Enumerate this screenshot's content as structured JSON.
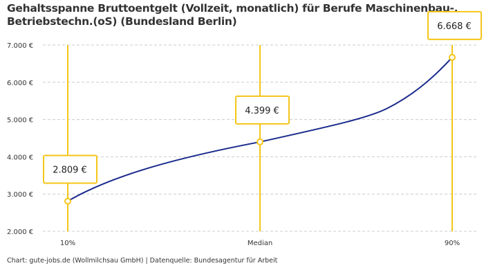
{
  "chart_data": {
    "type": "line",
    "title": "Gehaltsspanne Bruttoentgelt (Vollzeit, monatlich) für Berufe Maschinenbau-, Betriebstechn.(oS) (Bundesland Berlin)",
    "categories": [
      "10%",
      "Median",
      "90%"
    ],
    "values": [
      2809,
      4399,
      6668
    ],
    "data_labels": [
      "2.809 €",
      "4.399 €",
      "6.668 €"
    ],
    "ylim": [
      2000,
      7000
    ],
    "yticks": [
      2000,
      3000,
      4000,
      5000,
      6000,
      7000
    ],
    "ytick_labels": [
      "2.000 €",
      "3.000 €",
      "4.000 €",
      "5.000 €",
      "6.000 €",
      "7.000 €"
    ],
    "grid": "horizontal dashed",
    "line_color": "#1a2a8c",
    "marker_color": "#f5c518"
  },
  "footer": "Chart: gute-jobs.de (Wollmilchsau GmbH) | Datenquelle: Bundesagentur für Arbeit"
}
